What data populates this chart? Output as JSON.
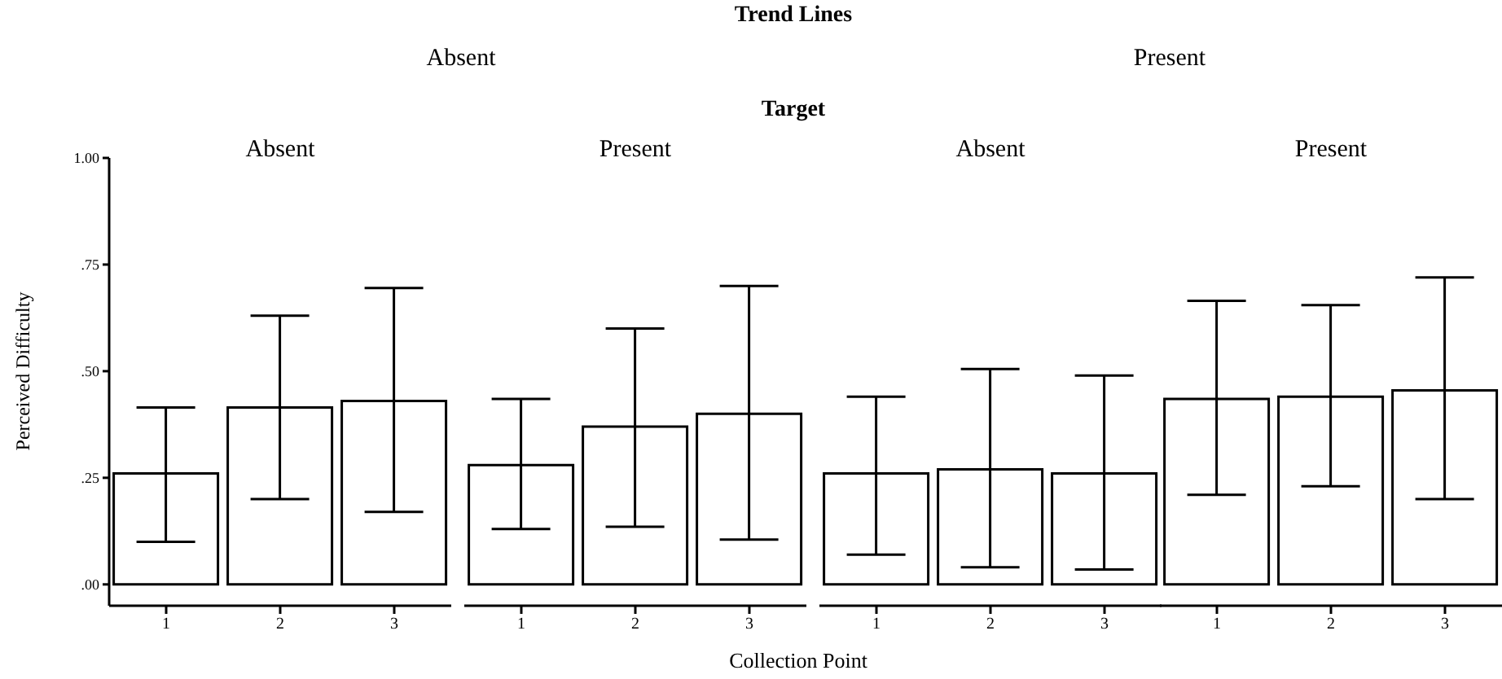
{
  "chart_data": [
    {
      "type": "bar",
      "title": "Absent",
      "ylabel": "Perceived Difficulty",
      "annotations": [
        "Trend Lines",
        "Absent",
        "Target"
      ],
      "categories": [
        "1",
        "2",
        "3"
      ],
      "values": [
        0.26,
        0.415,
        0.43
      ],
      "errors": [
        [
          0.1,
          0.415
        ],
        [
          0.2,
          0.63
        ],
        [
          0.17,
          0.695
        ]
      ],
      "color": "#ffffff",
      "ylim": [
        -0.05,
        1
      ],
      "yticks": [
        {
          "value": 0,
          "label": ".00"
        },
        {
          "value": 0.25,
          "label": ".25"
        },
        {
          "value": 0.5,
          "label": ".50"
        },
        {
          "value": 0.75,
          "label": ".75"
        },
        {
          "value": 1,
          "label": "1.00"
        }
      ]
    },
    {
      "type": "bar",
      "title": "Present",
      "xlabel": "Collection Point",
      "categories": [
        "1",
        "2",
        "3"
      ],
      "values": [
        0.28,
        0.37,
        0.4
      ],
      "errors": [
        [
          0.13,
          0.435
        ],
        [
          0.135,
          0.6
        ],
        [
          0.105,
          0.7
        ]
      ],
      "color": "#ffffff",
      "ylim": [
        -0.05,
        1
      ],
      "tick_labels": "x"
    },
    {
      "type": "bar",
      "title": "Absent",
      "annotations": [
        "Present"
      ],
      "categories": [
        "1",
        "2",
        "3"
      ],
      "values": [
        0.26,
        0.27,
        0.26
      ],
      "errors": [
        [
          0.07,
          0.44
        ],
        [
          0.04,
          0.505
        ],
        [
          0.035,
          0.49
        ]
      ],
      "color": "#ffffff",
      "ylim": [
        -0.05,
        1
      ],
      "tick_labels": "x"
    },
    {
      "type": "bar",
      "title": "Present",
      "categories": [
        "1",
        "2",
        "3"
      ],
      "values": [
        0.435,
        0.44,
        0.455
      ],
      "errors": [
        [
          0.21,
          0.665
        ],
        [
          0.23,
          0.655
        ],
        [
          0.2,
          0.72
        ]
      ],
      "color": "#ffffff",
      "ylim": [
        -0.05,
        1
      ],
      "tick_labels": "x"
    }
  ]
}
